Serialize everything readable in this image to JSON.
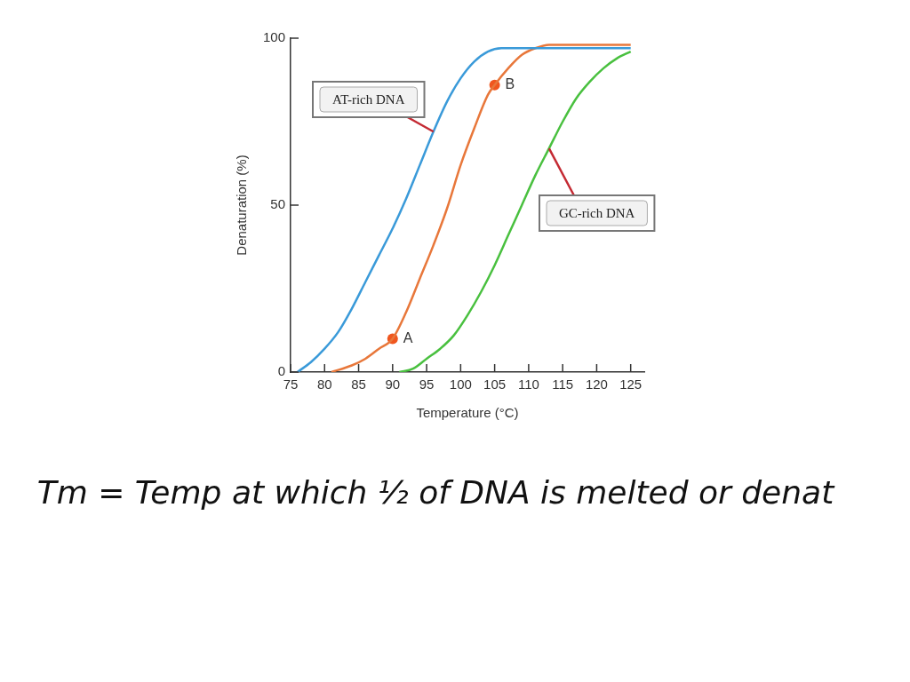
{
  "chart_data": {
    "type": "line",
    "xlabel": "Temperature (°C)",
    "ylabel": "Denaturation (%)",
    "xlim": [
      75,
      127
    ],
    "xticks": [
      75,
      80,
      85,
      90,
      95,
      100,
      105,
      110,
      115,
      120,
      125
    ],
    "ylim": [
      0,
      100
    ],
    "yticks": [
      0,
      50,
      100
    ],
    "grid": false,
    "legend": false,
    "marker": "none",
    "line_style": "solid",
    "series": [
      {
        "name": "AT-rich DNA",
        "color": "#3a9ad9",
        "x": [
          76,
          78,
          80,
          82,
          84,
          86,
          88,
          90,
          92,
          94,
          96,
          98,
          100,
          102,
          104,
          106,
          125
        ],
        "values": [
          0,
          3,
          7,
          12,
          19,
          27,
          35,
          43,
          52,
          62,
          72,
          81,
          88,
          93,
          96,
          97,
          97
        ]
      },
      {
        "color": "#e8773a",
        "x": [
          81,
          84,
          86,
          88,
          90,
          92,
          94,
          96,
          98,
          100,
          102,
          104,
          105,
          107,
          109,
          111,
          113,
          125
        ],
        "values": [
          0,
          2,
          4,
          7,
          10,
          18,
          28,
          38,
          49,
          62,
          73,
          83,
          86,
          91,
          95,
          97,
          98,
          98
        ]
      },
      {
        "name": "GC-rich DNA",
        "color": "#49c03f",
        "x": [
          91,
          93,
          95,
          97,
          99,
          101,
          103,
          105,
          107,
          109,
          111,
          113,
          115,
          117,
          119,
          121,
          123,
          125
        ],
        "values": [
          0,
          1,
          4,
          7,
          11,
          17,
          24,
          32,
          41,
          50,
          59,
          67,
          75,
          82,
          87,
          91,
          94,
          96
        ]
      },
      {
        "type": "scatter",
        "marker": "circle",
        "color": "#f0561e",
        "x": [
          90,
          105
        ],
        "values": [
          10,
          86
        ]
      }
    ],
    "annotations": [
      {
        "text": "A",
        "x": 90,
        "y": 10
      },
      {
        "text": "B",
        "x": 105,
        "y": 86
      },
      "Tm = Temp at which ½ of DNA is melted or denat"
    ]
  }
}
